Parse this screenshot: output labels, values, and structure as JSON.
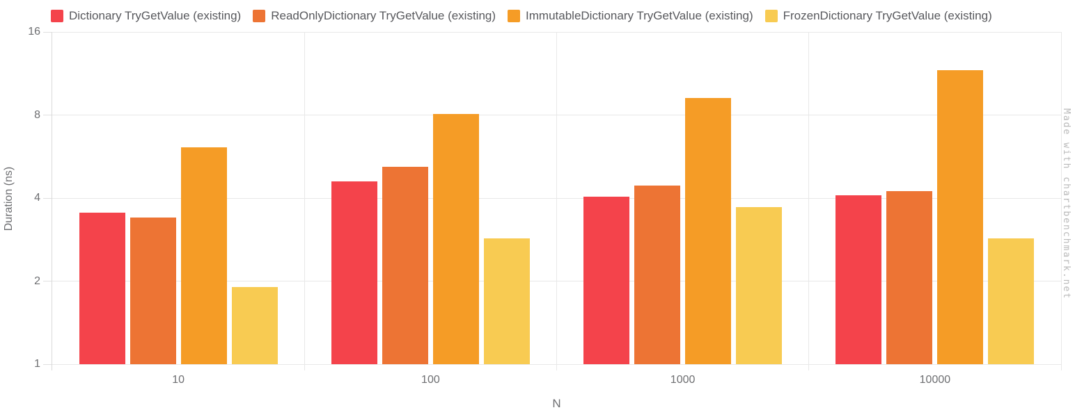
{
  "watermark": "Made with chartbenchmark.net",
  "chart_data": {
    "type": "bar",
    "title": "",
    "xlabel": "N",
    "ylabel": "Duration (ns)",
    "y_scale": "log2",
    "ylim": [
      1,
      16
    ],
    "y_ticks": [
      "16",
      "8",
      "4",
      "2",
      "1"
    ],
    "y_tick_values": [
      16,
      8,
      4,
      2,
      1
    ],
    "grid": true,
    "legend_position": "top",
    "categories": [
      "10",
      "100",
      "1000",
      "10000"
    ],
    "series": [
      {
        "name": "Dictionary TryGetValue (existing)",
        "color": "#f4434b",
        "values": [
          3.55,
          4.6,
          4.05,
          4.1
        ]
      },
      {
        "name": "ReadOnlyDictionary TryGetValue (existing)",
        "color": "#ed7434",
        "values": [
          3.4,
          5.2,
          4.45,
          4.25
        ]
      },
      {
        "name": "ImmutableDictionary TryGetValue (existing)",
        "color": "#f59c26",
        "values": [
          6.1,
          8.05,
          9.2,
          11.6
        ]
      },
      {
        "name": "FrozenDictionary TryGetValue (existing)",
        "color": "#f8cb52",
        "values": [
          1.9,
          2.85,
          3.7,
          2.85
        ]
      }
    ],
    "colors": {
      "gridline": "#e8e8e8",
      "axis_line": "#d9d9d9",
      "tick_text": "#6d6e71",
      "legend_text": "#57585c",
      "watermark_text": "#b9b9b9"
    }
  }
}
